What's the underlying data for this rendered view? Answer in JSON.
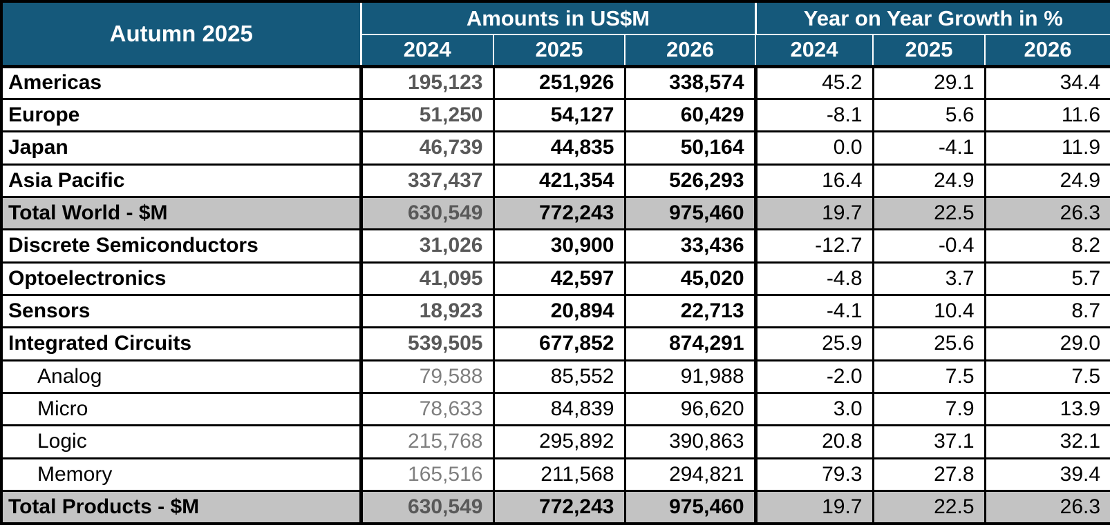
{
  "title": "Autumn 2025",
  "columns": {
    "amounts_group": "Amounts in US$M",
    "growth_group": "Year on Year Growth in %",
    "amount_years": [
      "2024",
      "2025",
      "2026"
    ],
    "growth_years": [
      "2024",
      "2025",
      "2026"
    ]
  },
  "rows": [
    {
      "label": "Americas",
      "style": "main",
      "amounts": [
        "195,123",
        "251,926",
        "338,574"
      ],
      "growth": [
        "45.2",
        "29.1",
        "34.4"
      ]
    },
    {
      "label": "Europe",
      "style": "main",
      "amounts": [
        "51,250",
        "54,127",
        "60,429"
      ],
      "growth": [
        "-8.1",
        "5.6",
        "11.6"
      ]
    },
    {
      "label": "Japan",
      "style": "main",
      "amounts": [
        "46,739",
        "44,835",
        "50,164"
      ],
      "growth": [
        "0.0",
        "-4.1",
        "11.9"
      ]
    },
    {
      "label": "Asia Pacific",
      "style": "main",
      "amounts": [
        "337,437",
        "421,354",
        "526,293"
      ],
      "growth": [
        "16.4",
        "24.9",
        "24.9"
      ]
    },
    {
      "label": "Total World - $M",
      "style": "total",
      "amounts": [
        "630,549",
        "772,243",
        "975,460"
      ],
      "growth": [
        "19.7",
        "22.5",
        "26.3"
      ]
    },
    {
      "label": "Discrete Semiconductors",
      "style": "main",
      "amounts": [
        "31,026",
        "30,900",
        "33,436"
      ],
      "growth": [
        "-12.7",
        "-0.4",
        "8.2"
      ]
    },
    {
      "label": "Optoelectronics",
      "style": "main",
      "amounts": [
        "41,095",
        "42,597",
        "45,020"
      ],
      "growth": [
        "-4.8",
        "3.7",
        "5.7"
      ]
    },
    {
      "label": "Sensors",
      "style": "main",
      "amounts": [
        "18,923",
        "20,894",
        "22,713"
      ],
      "growth": [
        "-4.1",
        "10.4",
        "8.7"
      ]
    },
    {
      "label": "Integrated Circuits",
      "style": "main",
      "amounts": [
        "539,505",
        "677,852",
        "874,291"
      ],
      "growth": [
        "25.9",
        "25.6",
        "29.0"
      ]
    },
    {
      "label": "Analog",
      "style": "sub",
      "amounts": [
        "79,588",
        "85,552",
        "91,988"
      ],
      "growth": [
        "-2.0",
        "7.5",
        "7.5"
      ]
    },
    {
      "label": "Micro",
      "style": "sub",
      "amounts": [
        "78,633",
        "84,839",
        "96,620"
      ],
      "growth": [
        "3.0",
        "7.9",
        "13.9"
      ]
    },
    {
      "label": "Logic",
      "style": "sub",
      "amounts": [
        "215,768",
        "295,892",
        "390,863"
      ],
      "growth": [
        "20.8",
        "37.1",
        "32.1"
      ]
    },
    {
      "label": "Memory",
      "style": "sub",
      "amounts": [
        "165,516",
        "211,568",
        "294,821"
      ],
      "growth": [
        "79.3",
        "27.8",
        "39.4"
      ]
    },
    {
      "label": "Total Products - $M",
      "style": "total",
      "amounts": [
        "630,549",
        "772,243",
        "975,460"
      ],
      "growth": [
        "19.7",
        "22.5",
        "26.3"
      ]
    }
  ],
  "colors": {
    "header_bg": "#15597B",
    "header_text": "#FFFFFF",
    "total_row_bg": "#C3C3C3",
    "muted_2024_main": "#595959",
    "muted_2024_sub": "#7F7F7F",
    "border": "#000000",
    "body_bg": "#FFFFFF"
  },
  "chart_data": {
    "type": "table",
    "title": "Autumn 2025",
    "units": {
      "amounts": "US$M",
      "growth": "%"
    },
    "column_groups": [
      "Amounts in US$M",
      "Year on Year Growth in %"
    ],
    "years": [
      2024,
      2025,
      2026
    ],
    "rows": [
      {
        "name": "Americas",
        "amounts": [
          195123,
          251926,
          338574
        ],
        "growth": [
          45.2,
          29.1,
          34.4
        ]
      },
      {
        "name": "Europe",
        "amounts": [
          51250,
          54127,
          60429
        ],
        "growth": [
          -8.1,
          5.6,
          11.6
        ]
      },
      {
        "name": "Japan",
        "amounts": [
          46739,
          44835,
          50164
        ],
        "growth": [
          0.0,
          -4.1,
          11.9
        ]
      },
      {
        "name": "Asia Pacific",
        "amounts": [
          337437,
          421354,
          526293
        ],
        "growth": [
          16.4,
          24.9,
          24.9
        ]
      },
      {
        "name": "Total World - $M",
        "amounts": [
          630549,
          772243,
          975460
        ],
        "growth": [
          19.7,
          22.5,
          26.3
        ]
      },
      {
        "name": "Discrete Semiconductors",
        "amounts": [
          31026,
          30900,
          33436
        ],
        "growth": [
          -12.7,
          -0.4,
          8.2
        ]
      },
      {
        "name": "Optoelectronics",
        "amounts": [
          41095,
          42597,
          45020
        ],
        "growth": [
          -4.8,
          3.7,
          5.7
        ]
      },
      {
        "name": "Sensors",
        "amounts": [
          18923,
          20894,
          22713
        ],
        "growth": [
          -4.1,
          10.4,
          8.7
        ]
      },
      {
        "name": "Integrated Circuits",
        "amounts": [
          539505,
          677852,
          874291
        ],
        "growth": [
          25.9,
          25.6,
          29.0
        ]
      },
      {
        "name": "Analog",
        "amounts": [
          79588,
          85552,
          91988
        ],
        "growth": [
          -2.0,
          7.5,
          7.5
        ]
      },
      {
        "name": "Micro",
        "amounts": [
          78633,
          84839,
          96620
        ],
        "growth": [
          3.0,
          7.9,
          13.9
        ]
      },
      {
        "name": "Logic",
        "amounts": [
          215768,
          295892,
          390863
        ],
        "growth": [
          20.8,
          37.1,
          32.1
        ]
      },
      {
        "name": "Memory",
        "amounts": [
          165516,
          211568,
          294821
        ],
        "growth": [
          79.3,
          27.8,
          39.4
        ]
      },
      {
        "name": "Total Products - $M",
        "amounts": [
          630549,
          772243,
          975460
        ],
        "growth": [
          19.7,
          22.5,
          26.3
        ]
      }
    ]
  }
}
